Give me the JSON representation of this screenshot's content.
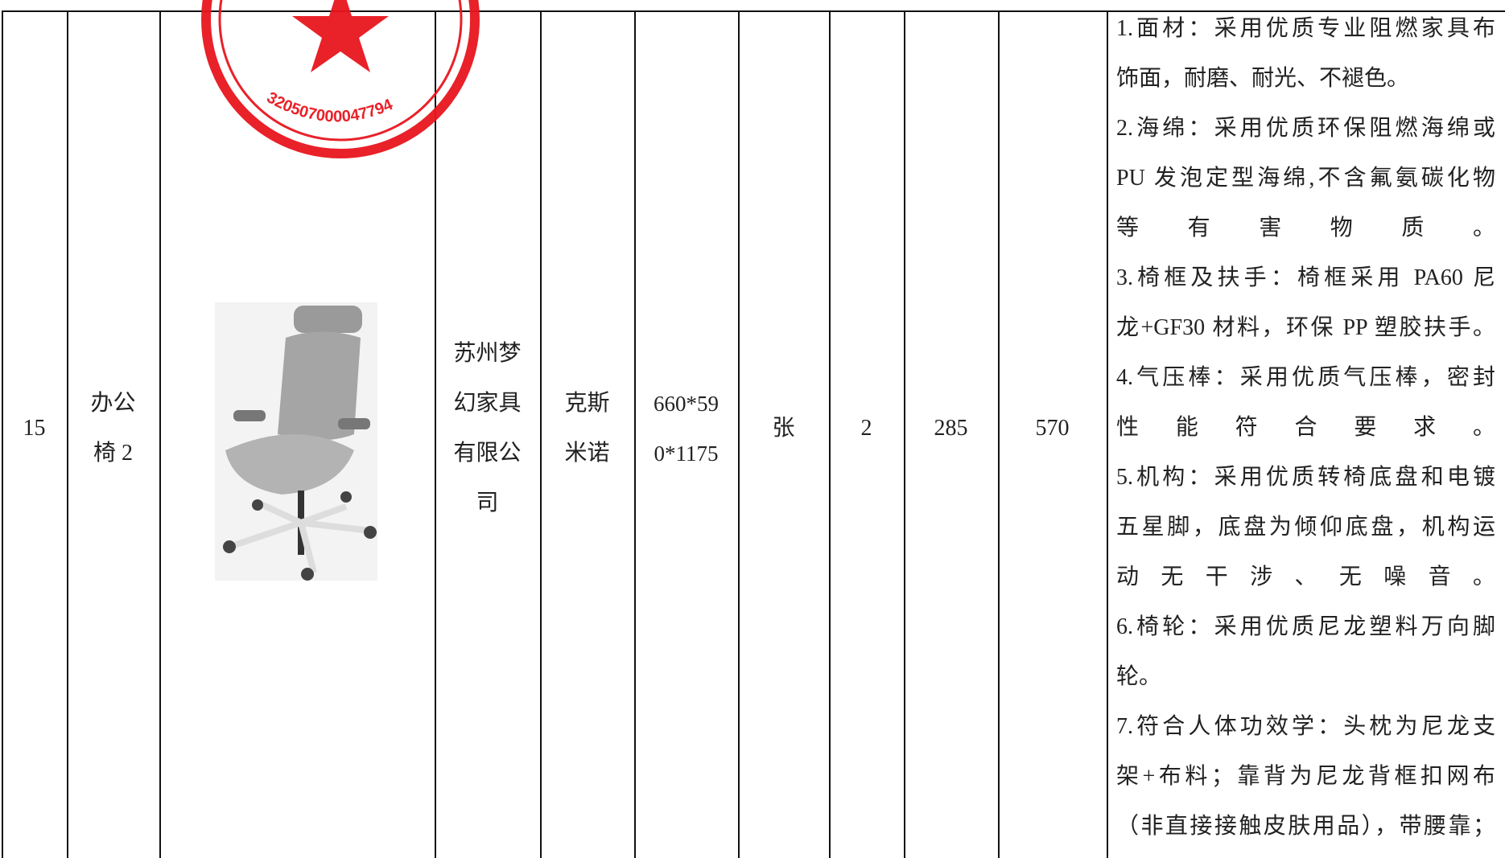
{
  "stamp": {
    "number": "320507000047794"
  },
  "row": {
    "index": "15",
    "name_lines": [
      "办公",
      "椅 2"
    ],
    "supplier_lines": [
      "苏州梦",
      "幻家具",
      "有限公",
      "司"
    ],
    "brand_lines": [
      "克斯",
      "米诺"
    ],
    "spec_lines": [
      "660*59",
      "0*1175"
    ],
    "unit": "张",
    "quantity": "2",
    "unit_price": "285",
    "total": "570",
    "description_lines": [
      "1.面材：采用优质专业阻燃家具布",
      "饰面，耐磨、耐光、不褪色。",
      "2.海绵：采用优质环保阻燃海绵或",
      "PU 发泡定型海绵,不含氟氨碳化物",
      "等有害物质。",
      "3.椅框及扶手：椅框采用 PA60 尼",
      "龙+GF30 材料，环保 PP 塑胶扶手。",
      "4.气压棒：采用优质气压棒，密封",
      "性能符合要求。",
      "5.机构：采用优质转椅底盘和电镀",
      "五星脚，底盘为倾仰底盘，机构运",
      "动无干涉、无噪音。",
      "6.椅轮：采用优质尼龙塑料万向脚",
      "轮。",
      "7.符合人体功效学：头枕为尼龙支",
      "架+布料；靠背为尼龙背框扣网布",
      "（非直接接触皮肤用品），带腰靠；"
    ]
  }
}
